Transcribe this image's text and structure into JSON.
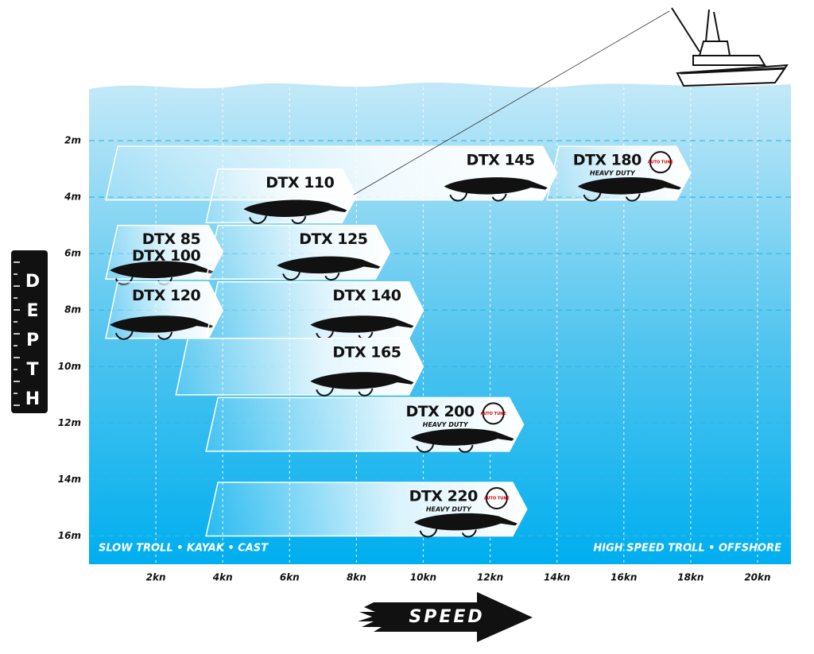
{
  "chart_data": {
    "type": "lure-range",
    "x_label": "SPEED",
    "y_label": "DEPTH",
    "footer_left": "SLOW TROLL • KAYAK • CAST",
    "footer_right": "HIGH SPEED TROLL • OFFSHORE",
    "xlim": [
      0,
      21
    ],
    "ylim": [
      0,
      17
    ],
    "xticks": [
      {
        "value": 2,
        "label": "2kn"
      },
      {
        "value": 4,
        "label": "4kn"
      },
      {
        "value": 6,
        "label": "6kn"
      },
      {
        "value": 8,
        "label": "8kn"
      },
      {
        "value": 10,
        "label": "10kn"
      },
      {
        "value": 12,
        "label": "12kn"
      },
      {
        "value": 14,
        "label": "14kn"
      },
      {
        "value": 16,
        "label": "16kn"
      },
      {
        "value": 18,
        "label": "18kn"
      },
      {
        "value": 20,
        "label": "20kn"
      }
    ],
    "yticks": [
      {
        "value": 2,
        "label": "2m"
      },
      {
        "value": 4,
        "label": "4m"
      },
      {
        "value": 6,
        "label": "6m"
      },
      {
        "value": 8,
        "label": "8m"
      },
      {
        "value": 10,
        "label": "10m"
      },
      {
        "value": 12,
        "label": "12m"
      },
      {
        "value": 14,
        "label": "14m"
      },
      {
        "value": 16,
        "label": "16m"
      }
    ],
    "lures": [
      {
        "name": [
          "DTX 145"
        ],
        "speed": [
          0.5,
          14
        ],
        "depth": [
          2.2,
          4.1
        ]
      },
      {
        "name": [
          "DTX 180"
        ],
        "subtitle": "HEAVY DUTY",
        "badge": "AUTO TUNE",
        "speed": [
          13.7,
          18
        ],
        "depth": [
          2.2,
          4.1
        ]
      },
      {
        "name": [
          "DTX 110"
        ],
        "speed": [
          3.5,
          8
        ],
        "depth": [
          3,
          4.9
        ]
      },
      {
        "name": [
          "DTX 85",
          "DTX 100"
        ],
        "speed": [
          0.5,
          4
        ],
        "depth": [
          5,
          6.9
        ]
      },
      {
        "name": [
          "DTX 125"
        ],
        "speed": [
          3.5,
          9
        ],
        "depth": [
          5,
          6.9
        ]
      },
      {
        "name": [
          "DTX 120"
        ],
        "speed": [
          0.5,
          4
        ],
        "depth": [
          7,
          9
        ]
      },
      {
        "name": [
          "DTX 140"
        ],
        "speed": [
          3.5,
          10
        ],
        "depth": [
          7,
          9
        ]
      },
      {
        "name": [
          "DTX 165"
        ],
        "speed": [
          2.6,
          10
        ],
        "depth": [
          9,
          11
        ]
      },
      {
        "name": [
          "DTX 200"
        ],
        "subtitle": "HEAVY DUTY",
        "badge": "AUTO TUNE",
        "speed": [
          3.5,
          13
        ],
        "depth": [
          11.1,
          13
        ]
      },
      {
        "name": [
          "DTX 220"
        ],
        "subtitle": "HEAVY DUTY",
        "badge": "AUTO TUNE",
        "speed": [
          3.5,
          13.1
        ],
        "depth": [
          14.1,
          16
        ]
      }
    ]
  }
}
